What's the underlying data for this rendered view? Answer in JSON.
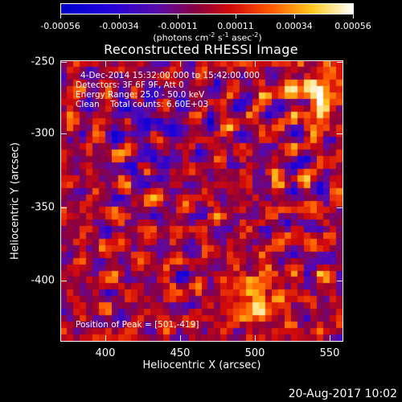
{
  "colorbar": {
    "ticks": [
      "-0.00056",
      "-0.00034",
      "-0.00011",
      "0.00011",
      "0.00034",
      "0.00056"
    ],
    "unit_prefix": "(photons cm",
    "unit_e1": "-2",
    "unit_mid1": " s",
    "unit_e2": "-1",
    "unit_mid2": " asec",
    "unit_e3": "-2",
    "unit_suffix": ")"
  },
  "title": "Reconstructed RHESSI Image",
  "info": {
    "time_range": "4-Dec-2014 15:32:00.000 to 15:42:00.000",
    "detectors": "Detectors: 3F 6F 9F, Att 0",
    "energy": "Energy Range: 25.0 - 50.0 keV",
    "clean": "Clean    Total counts: 6.60E+03",
    "peak": "Position of Peak = [501,-419]"
  },
  "axes": {
    "x_title": "Heliocentric X (arcsec)",
    "y_title": "Heliocentric Y (arcsec)",
    "x_ticks": [
      "400",
      "450",
      "500",
      "550"
    ],
    "y_ticks": [
      "-250",
      "-300",
      "-350",
      "-400"
    ]
  },
  "footer": "20-Aug-2017 10:02",
  "image": {
    "colormap": "idl-heat",
    "grid_cells": 44
  }
}
